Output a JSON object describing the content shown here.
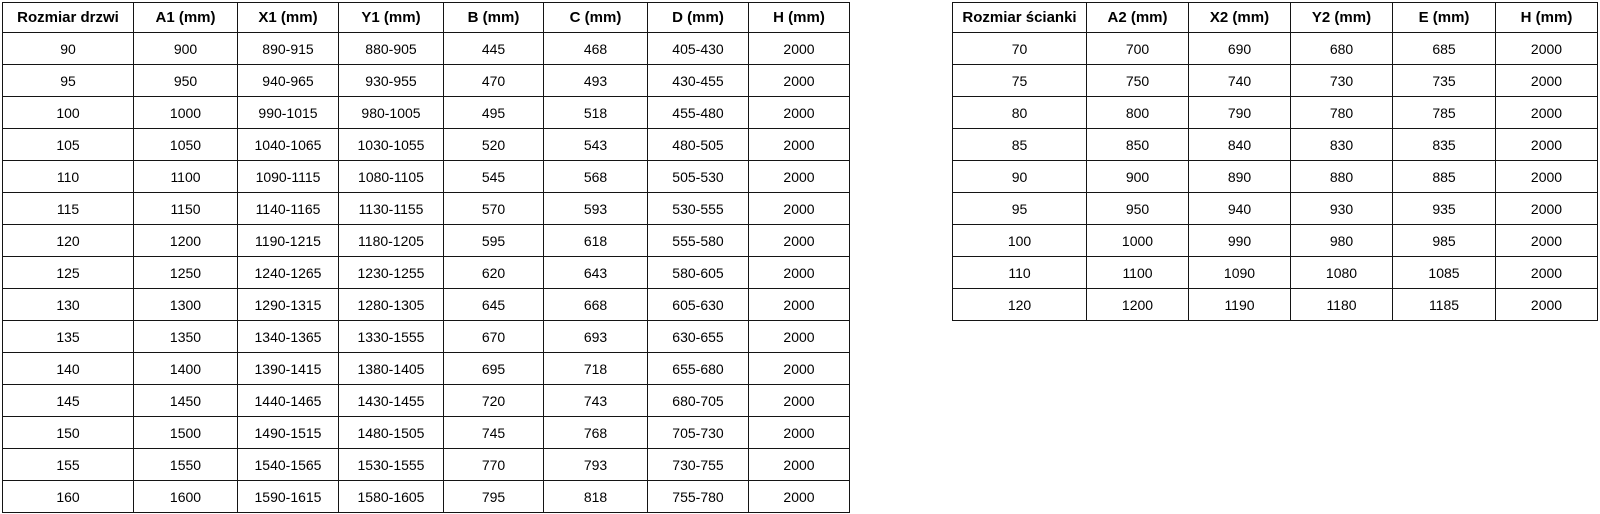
{
  "colors": {
    "border": "#141414",
    "text": "#000000",
    "background": "#ffffff"
  },
  "tables": [
    {
      "name": "door-size-table",
      "headers": [
        "Rozmiar drzwi",
        "A1 (mm)",
        "X1 (mm)",
        "Y1 (mm)",
        "B (mm)",
        "C (mm)",
        "D (mm)",
        "H (mm)"
      ],
      "rows": [
        [
          "90",
          "900",
          "890-915",
          "880-905",
          "445",
          "468",
          "405-430",
          "2000"
        ],
        [
          "95",
          "950",
          "940-965",
          "930-955",
          "470",
          "493",
          "430-455",
          "2000"
        ],
        [
          "100",
          "1000",
          "990-1015",
          "980-1005",
          "495",
          "518",
          "455-480",
          "2000"
        ],
        [
          "105",
          "1050",
          "1040-1065",
          "1030-1055",
          "520",
          "543",
          "480-505",
          "2000"
        ],
        [
          "110",
          "1100",
          "1090-1115",
          "1080-1105",
          "545",
          "568",
          "505-530",
          "2000"
        ],
        [
          "115",
          "1150",
          "1140-1165",
          "1130-1155",
          "570",
          "593",
          "530-555",
          "2000"
        ],
        [
          "120",
          "1200",
          "1190-1215",
          "1180-1205",
          "595",
          "618",
          "555-580",
          "2000"
        ],
        [
          "125",
          "1250",
          "1240-1265",
          "1230-1255",
          "620",
          "643",
          "580-605",
          "2000"
        ],
        [
          "130",
          "1300",
          "1290-1315",
          "1280-1305",
          "645",
          "668",
          "605-630",
          "2000"
        ],
        [
          "135",
          "1350",
          "1340-1365",
          "1330-1555",
          "670",
          "693",
          "630-655",
          "2000"
        ],
        [
          "140",
          "1400",
          "1390-1415",
          "1380-1405",
          "695",
          "718",
          "655-680",
          "2000"
        ],
        [
          "145",
          "1450",
          "1440-1465",
          "1430-1455",
          "720",
          "743",
          "680-705",
          "2000"
        ],
        [
          "150",
          "1500",
          "1490-1515",
          "1480-1505",
          "745",
          "768",
          "705-730",
          "2000"
        ],
        [
          "155",
          "1550",
          "1540-1565",
          "1530-1555",
          "770",
          "793",
          "730-755",
          "2000"
        ],
        [
          "160",
          "1600",
          "1590-1615",
          "1580-1605",
          "795",
          "818",
          "755-780",
          "2000"
        ]
      ]
    },
    {
      "name": "wall-size-table",
      "headers": [
        "Rozmiar ścianki",
        "A2 (mm)",
        "X2 (mm)",
        "Y2 (mm)",
        "E (mm)",
        "H (mm)"
      ],
      "rows": [
        [
          "70",
          "700",
          "690",
          "680",
          "685",
          "2000"
        ],
        [
          "75",
          "750",
          "740",
          "730",
          "735",
          "2000"
        ],
        [
          "80",
          "800",
          "790",
          "780",
          "785",
          "2000"
        ],
        [
          "85",
          "850",
          "840",
          "830",
          "835",
          "2000"
        ],
        [
          "90",
          "900",
          "890",
          "880",
          "885",
          "2000"
        ],
        [
          "95",
          "950",
          "940",
          "930",
          "935",
          "2000"
        ],
        [
          "100",
          "1000",
          "990",
          "980",
          "985",
          "2000"
        ],
        [
          "110",
          "1100",
          "1090",
          "1080",
          "1085",
          "2000"
        ],
        [
          "120",
          "1200",
          "1190",
          "1180",
          "1185",
          "2000"
        ]
      ]
    }
  ]
}
